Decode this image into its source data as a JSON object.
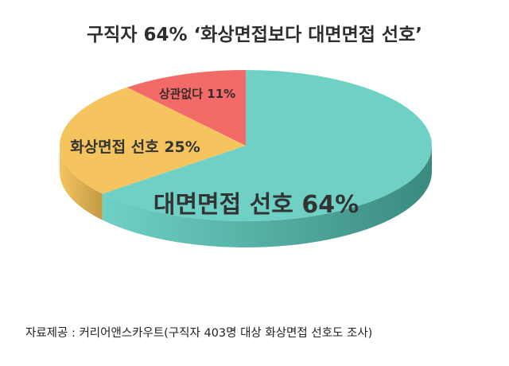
{
  "chart_data": {
    "type": "pie",
    "title": "구직자 64% ‘화상면접보다 대면면접 선호’",
    "slices": [
      {
        "label": "대면면접 선호",
        "value": 64,
        "value_label": "64%",
        "color": "#6fd1c6",
        "side_color": "#3a8a80"
      },
      {
        "label": "화상면접 선호",
        "value": 25,
        "value_label": "25%",
        "color": "#f5c45e",
        "side_color": "#c29a44"
      },
      {
        "label": "상관없다",
        "value": 11,
        "value_label": "11%",
        "color": "#f26b68",
        "side_color": "#b94d4a"
      }
    ],
    "start": "top",
    "direction": "clockwise",
    "style": "3d-tilted"
  },
  "source": "자료제공 : 커리어앤스카우트(구직자 403명 대상 화상면접 선호도 조사)"
}
